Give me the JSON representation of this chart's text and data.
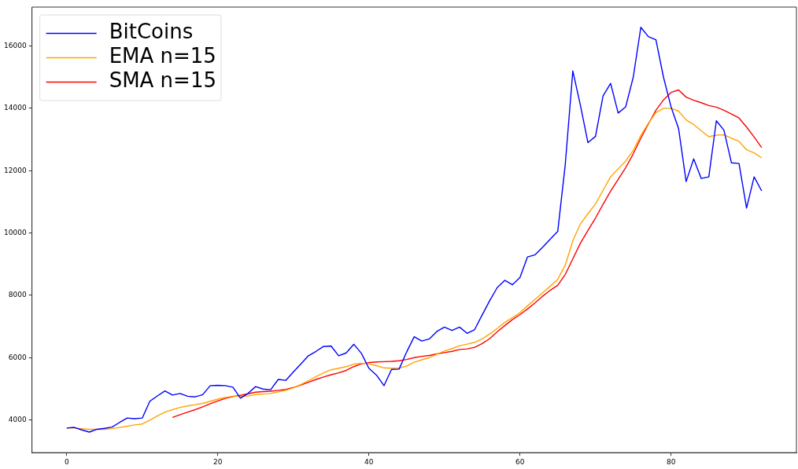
{
  "chart_data": {
    "type": "line",
    "legend": "top left",
    "grid": false,
    "marker": "none",
    "line_style": "solid",
    "x": [
      0,
      1,
      2,
      3,
      4,
      5,
      6,
      7,
      8,
      9,
      10,
      11,
      12,
      13,
      14,
      15,
      16,
      17,
      18,
      19,
      20,
      21,
      22,
      23,
      24,
      25,
      26,
      27,
      28,
      29,
      30,
      31,
      32,
      33,
      34,
      35,
      36,
      37,
      38,
      39,
      40,
      41,
      42,
      43,
      44,
      45,
      46,
      47,
      48,
      49,
      50,
      51,
      52,
      53,
      54,
      55,
      56,
      57,
      58,
      59,
      60,
      61,
      62,
      63,
      64,
      65,
      66,
      67,
      68,
      69,
      70,
      71,
      72,
      73,
      74,
      75,
      76,
      77,
      78,
      79,
      80,
      81,
      82,
      83,
      84,
      85,
      86,
      87,
      88,
      89,
      90,
      91,
      92
    ],
    "xlim": [
      -4.6,
      96.6
    ],
    "xticks": [
      0,
      20,
      40,
      60,
      80
    ],
    "ylim": [
      2950,
      17250
    ],
    "yticks": [
      4000,
      6000,
      8000,
      10000,
      12000,
      14000,
      16000
    ],
    "series": [
      {
        "name": "BitCoins",
        "color": "#0000ff",
        "values": [
          3740,
          3760,
          3680,
          3610,
          3700,
          3730,
          3770,
          3920,
          4060,
          4040,
          4060,
          4600,
          4770,
          4930,
          4800,
          4850,
          4760,
          4740,
          4810,
          5100,
          5110,
          5100,
          5050,
          4700,
          4850,
          5070,
          4990,
          4970,
          5300,
          5270,
          5540,
          5800,
          6060,
          6200,
          6360,
          6370,
          6060,
          6150,
          6430,
          6140,
          5660,
          5440,
          5100,
          5620,
          5630,
          6180,
          6670,
          6530,
          6600,
          6840,
          6980,
          6870,
          6980,
          6780,
          6900,
          7370,
          7830,
          8250,
          8480,
          8340,
          8570,
          9230,
          9300,
          9540,
          9800,
          10050,
          12200,
          15200,
          14100,
          12900,
          13100,
          14400,
          14800,
          13850,
          14050,
          15000,
          16600,
          16300,
          16200,
          15000,
          14050,
          13350,
          11650,
          12380,
          11750,
          11800,
          13600,
          13300,
          12250,
          12230,
          10800,
          11800,
          11350
        ]
      },
      {
        "name": "EMA n=15",
        "color": "#ffa500",
        "values": [
          3740,
          3740,
          3720,
          3700,
          3700,
          3700,
          3720,
          3760,
          3800,
          3840,
          3870,
          3990,
          4130,
          4250,
          4330,
          4400,
          4450,
          4490,
          4530,
          4600,
          4670,
          4720,
          4760,
          4760,
          4770,
          4810,
          4830,
          4850,
          4900,
          4950,
          5030,
          5140,
          5260,
          5390,
          5510,
          5610,
          5660,
          5710,
          5790,
          5820,
          5800,
          5740,
          5670,
          5660,
          5660,
          5730,
          5850,
          5930,
          6000,
          6110,
          6210,
          6290,
          6380,
          6430,
          6490,
          6600,
          6760,
          6940,
          7130,
          7280,
          7440,
          7660,
          7870,
          8080,
          8290,
          8510,
          8970,
          9750,
          10290,
          10620,
          10930,
          11370,
          11800,
          12060,
          12310,
          12650,
          13130,
          13520,
          13860,
          14000,
          14000,
          13910,
          13630,
          13480,
          13280,
          13090,
          13140,
          13150,
          13040,
          12940,
          12670,
          12570,
          12410
        ]
      },
      {
        "name": "SMA n=15",
        "color": "#ff0000",
        "values": [
          null,
          null,
          null,
          null,
          null,
          null,
          null,
          null,
          null,
          null,
          null,
          null,
          null,
          null,
          4080,
          4170,
          4250,
          4330,
          4420,
          4520,
          4610,
          4690,
          4750,
          4790,
          4840,
          4890,
          4910,
          4920,
          4950,
          4980,
          5040,
          5120,
          5210,
          5300,
          5380,
          5450,
          5510,
          5590,
          5710,
          5800,
          5840,
          5860,
          5870,
          5880,
          5900,
          5940,
          6000,
          6040,
          6070,
          6120,
          6160,
          6200,
          6260,
          6280,
          6330,
          6450,
          6610,
          6830,
          7030,
          7220,
          7380,
          7560,
          7760,
          7970,
          8160,
          8320,
          8670,
          9170,
          9670,
          10080,
          10480,
          10920,
          11340,
          11720,
          12100,
          12540,
          13040,
          13500,
          13940,
          14270,
          14510,
          14590,
          14360,
          14260,
          14180,
          14090,
          14040,
          13940,
          13820,
          13690,
          13400,
          13080,
          12740
        ]
      }
    ]
  }
}
